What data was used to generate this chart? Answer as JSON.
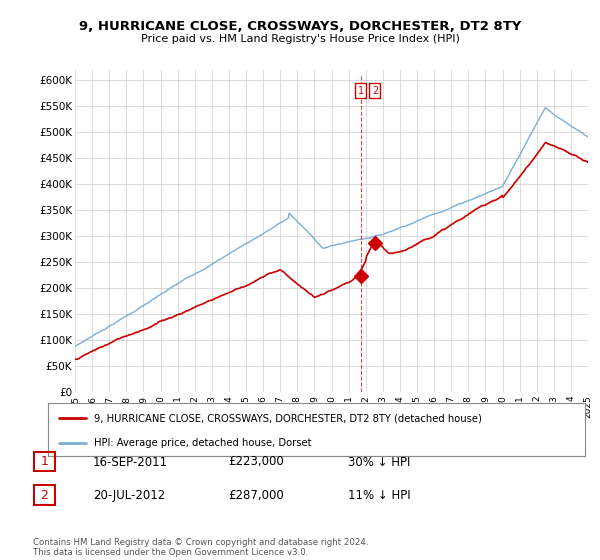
{
  "title_line1": "9, HURRICANE CLOSE, CROSSWAYS, DORCHESTER, DT2 8TY",
  "title_line2": "Price paid vs. HM Land Registry's House Price Index (HPI)",
  "ylabel_ticks": [
    "£0",
    "£50K",
    "£100K",
    "£150K",
    "£200K",
    "£250K",
    "£300K",
    "£350K",
    "£400K",
    "£450K",
    "£500K",
    "£550K",
    "£600K"
  ],
  "ytick_values": [
    0,
    50000,
    100000,
    150000,
    200000,
    250000,
    300000,
    350000,
    400000,
    450000,
    500000,
    550000,
    600000
  ],
  "hpi_color": "#7bafd4",
  "price_color": "#cc0000",
  "sale1_year": 2011.71,
  "sale1_price": 223000,
  "sale2_year": 2012.54,
  "sale2_price": 287000,
  "annotation1": {
    "label": "1",
    "date": "16-SEP-2011",
    "price": "£223,000",
    "pct": "30% ↓ HPI"
  },
  "annotation2": {
    "label": "2",
    "date": "20-JUL-2012",
    "price": "£287,000",
    "pct": "11% ↓ HPI"
  },
  "legend_house": "9, HURRICANE CLOSE, CROSSWAYS, DORCHESTER, DT2 8TY (detached house)",
  "legend_hpi": "HPI: Average price, detached house, Dorset",
  "footer": "Contains HM Land Registry data © Crown copyright and database right 2024.\nThis data is licensed under the Open Government Licence v3.0.",
  "xmin": 1995,
  "xmax": 2025
}
